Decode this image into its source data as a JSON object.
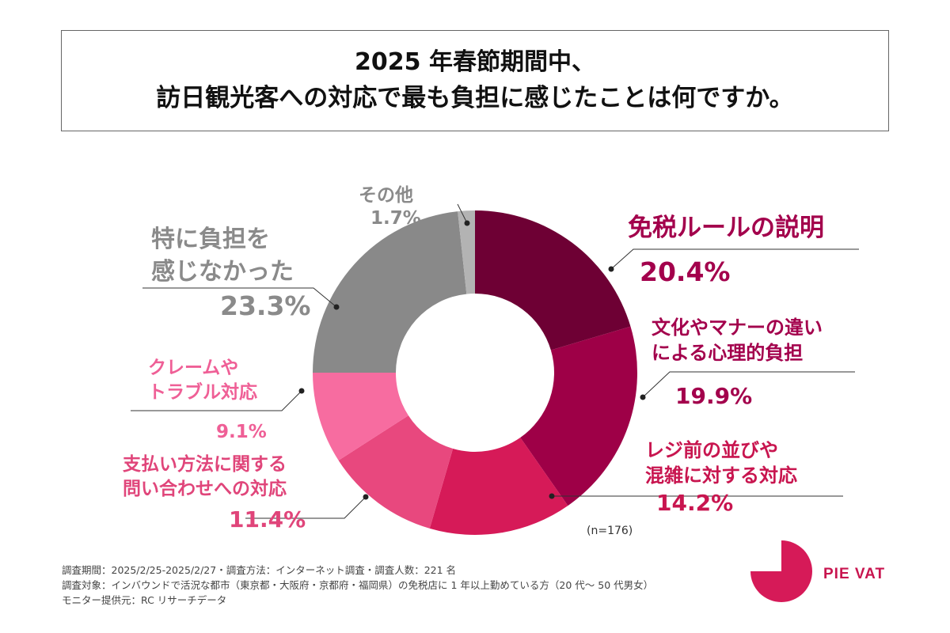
{
  "chart_data": {
    "type": "pie",
    "title_line1": "2025 年春節期間中、",
    "title_line2": "訪日観光客への対応で最も負担に感じたことは何ですか。",
    "sample_note": "(n=176)",
    "slices": [
      {
        "label": [
          "免税ルールの説明"
        ],
        "value": 20.4,
        "value_label": "20.4%",
        "color": "#6e0034",
        "label_color": "#a3004c"
      },
      {
        "label": [
          "文化やマナーの違い",
          "による心理的負担"
        ],
        "value": 19.9,
        "value_label": "19.9%",
        "color": "#9e0047",
        "label_color": "#a3004c"
      },
      {
        "label": [
          "レジ前の並びや",
          "混雑に対する対応"
        ],
        "value": 14.2,
        "value_label": "14.2%",
        "color": "#d61a58",
        "label_color": "#c8154f"
      },
      {
        "label": [
          "支払い方法に関する",
          "問い合わせへの対応"
        ],
        "value": 11.4,
        "value_label": "11.4%",
        "color": "#e8487e",
        "label_color": "#e0457a"
      },
      {
        "label": [
          "クレームや",
          "トラブル対応"
        ],
        "value": 9.1,
        "value_label": "9.1%",
        "color": "#f76ca0",
        "label_color": "#ef5f96"
      },
      {
        "label": [
          "特に負担を",
          "感じなかった"
        ],
        "value": 23.3,
        "value_label": "23.3%",
        "color": "#898989",
        "label_color": "#8a8a8a"
      },
      {
        "label": [
          "その他"
        ],
        "value": 1.7,
        "value_label": "1.7%",
        "color": "#b3b3b3",
        "label_color": "#8a8a8a"
      }
    ]
  },
  "footer": {
    "line1": "調査期間：2025/2/25-2025/2/27・調査方法：インターネット調査・調査人数：221 名",
    "line2": "調査対象：インバウンドで活況な都市（東京都・大阪府・京都府・福岡県）の免税店に 1 年以上勤めている方（20 代〜 50 代男女）",
    "line3": "モニター提供元：RC リサーチデータ"
  },
  "logo": {
    "text": "PIE VAT",
    "color": "#d61a58"
  }
}
